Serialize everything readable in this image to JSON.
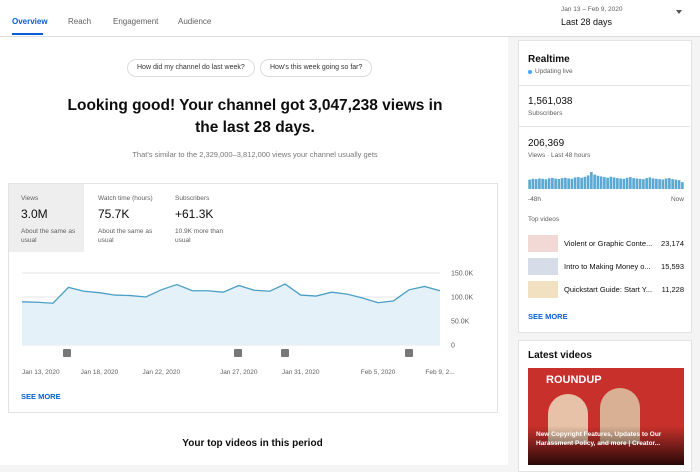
{
  "tabs": [
    "Overview",
    "Reach",
    "Engagement",
    "Audience"
  ],
  "date_range": {
    "dates": "Jan 13 – Feb 9, 2020",
    "label": "Last 28 days"
  },
  "questions": [
    "How did my channel do last week?",
    "How's this week going so far?"
  ],
  "headline": "Looking good! Your channel got 3,047,238 views in the last 28 days.",
  "subheadline": "That's similar to the 2,329,000–3,812,000 views your channel usually gets",
  "metrics": [
    {
      "label": "Views",
      "value": "3.0M",
      "note": "About the same as usual"
    },
    {
      "label": "Watch time (hours)",
      "value": "75.7K",
      "note": "About the same as usual"
    },
    {
      "label": "Subscribers",
      "value": "+61.3K",
      "note": "10.9K more than usual"
    }
  ],
  "chart_data": [
    {
      "type": "line",
      "color": "#4a9fc6",
      "categories": [
        "Jan 13, 2020",
        null,
        null,
        null,
        null,
        "Jan 18, 2020",
        null,
        null,
        null,
        "Jan 22, 2020",
        null,
        null,
        null,
        null,
        "Jan 27, 2020",
        null,
        null,
        null,
        "Jan 31, 2020",
        null,
        null,
        null,
        null,
        "Feb 5, 2020",
        null,
        null,
        null,
        "Feb 9, 2..."
      ],
      "values": [
        90000,
        89000,
        87000,
        120000,
        112000,
        109000,
        104000,
        103000,
        100000,
        115000,
        126000,
        113000,
        113000,
        110000,
        124000,
        114000,
        112000,
        127000,
        104000,
        102000,
        110000,
        106000,
        98000,
        88000,
        92000,
        115000,
        122000,
        113000
      ],
      "ylim": [
        0,
        150000
      ],
      "yticks": [
        0,
        {
          "value": 50000,
          "label": "50.0K"
        },
        {
          "value": 100000,
          "label": "100.0K"
        },
        {
          "value": 150000,
          "label": "150.0K"
        }
      ],
      "grid": true
    },
    {
      "type": "bar",
      "color": "#5aa8d4",
      "axis_labels": [
        "-48h",
        "Now"
      ],
      "values": [
        55,
        60,
        58,
        62,
        60,
        57,
        63,
        65,
        61,
        59,
        64,
        66,
        62,
        60,
        68,
        70,
        66,
        72,
        80,
        100,
        85,
        78,
        74,
        70,
        66,
        72,
        68,
        64,
        62,
        60,
        66,
        70,
        64,
        62,
        60,
        58,
        64,
        68,
        62,
        60,
        58,
        56,
        62,
        64,
        58,
        55,
        52,
        40
      ]
    }
  ],
  "see_more": "SEE MORE",
  "top_videos_heading": "Your top videos in this period",
  "realtime": {
    "title": "Realtime",
    "status": "Updating live",
    "subscribers": "1,561,038",
    "subscribers_label": "Subscribers",
    "views": "206,369",
    "views_label": "Views · Last 48 hours",
    "top_videos_label": "Top videos",
    "top_videos": [
      {
        "title": "Violent or Graphic Conte...",
        "views": "23,174"
      },
      {
        "title": "Intro to Making Money o...",
        "views": "15,593"
      },
      {
        "title": "Quickstart Guide: Start Y...",
        "views": "11,228"
      }
    ],
    "see_more": "SEE MORE"
  },
  "latest_videos": {
    "title": "Latest videos",
    "thumbnail_text": "ROUNDUP",
    "caption": "New Copyright Features, Updates to Our Harassment Policy, and more | Creator..."
  }
}
